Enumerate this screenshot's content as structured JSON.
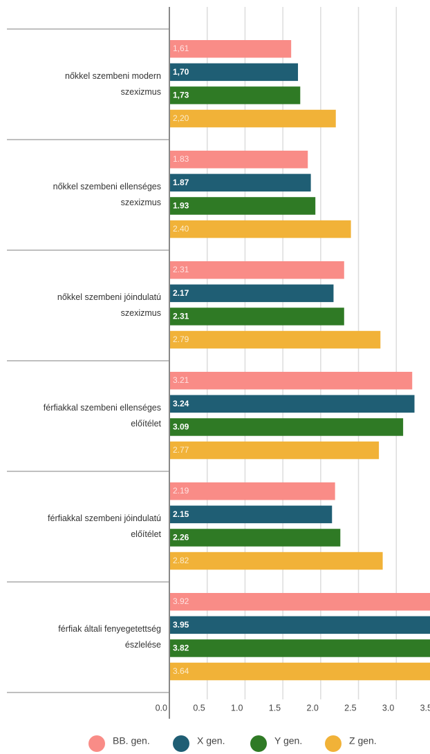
{
  "chart_data": {
    "type": "barh",
    "categories": [
      [
        "nőkkel szembeni modern",
        "szexizmus"
      ],
      [
        "nőkkel szembeni ellenséges",
        "szexizmus"
      ],
      [
        "nőkkel szembeni jóindulatú",
        "szexizmus"
      ],
      [
        "férfiakkal szembeni ellenséges",
        "előítélet"
      ],
      [
        "férfiakkal szembeni jóindulatú",
        "előítélet"
      ],
      [
        "férfiak általi fenyegetettség",
        "észlelése"
      ]
    ],
    "series": [
      {
        "name": "BB. gen.",
        "color": "#f98c87",
        "values": [
          1.61,
          1.83,
          2.31,
          3.21,
          2.19,
          3.92
        ],
        "value_labels": [
          "1,61",
          "1.83",
          "2.31",
          "3.21",
          "2.19",
          "3.92"
        ]
      },
      {
        "name": "X gen.",
        "color": "#1f5e74",
        "values": [
          1.7,
          1.87,
          2.17,
          3.24,
          2.15,
          3.95
        ],
        "value_labels": [
          "1,70",
          "1.87",
          "2.17",
          "3.24",
          "2.15",
          "3.95"
        ]
      },
      {
        "name": "Y gen.",
        "color": "#2f7a25",
        "values": [
          1.73,
          1.93,
          2.31,
          3.09,
          2.26,
          3.82
        ],
        "value_labels": [
          "1,73",
          "1.93",
          "2.31",
          "3.09",
          "2.26",
          "3.82"
        ]
      },
      {
        "name": "Z gen.",
        "color": "#f1b238",
        "values": [
          2.2,
          2.4,
          2.79,
          2.77,
          2.82,
          3.64
        ],
        "value_labels": [
          "2,20",
          "2.40",
          "2.79",
          "2.77",
          "2.82",
          "3.64"
        ]
      }
    ],
    "xlim": [
      0,
      3.5
    ],
    "xticks": [
      {
        "value": 0,
        "label": "0.0"
      },
      0.5,
      {
        "value": 1,
        "label": "1.0"
      },
      1.5,
      {
        "value": 2,
        "label": "2.0"
      },
      2.5,
      {
        "value": 3,
        "label": "3.0"
      },
      3.5
    ],
    "grid": true,
    "legend": "bottom"
  }
}
